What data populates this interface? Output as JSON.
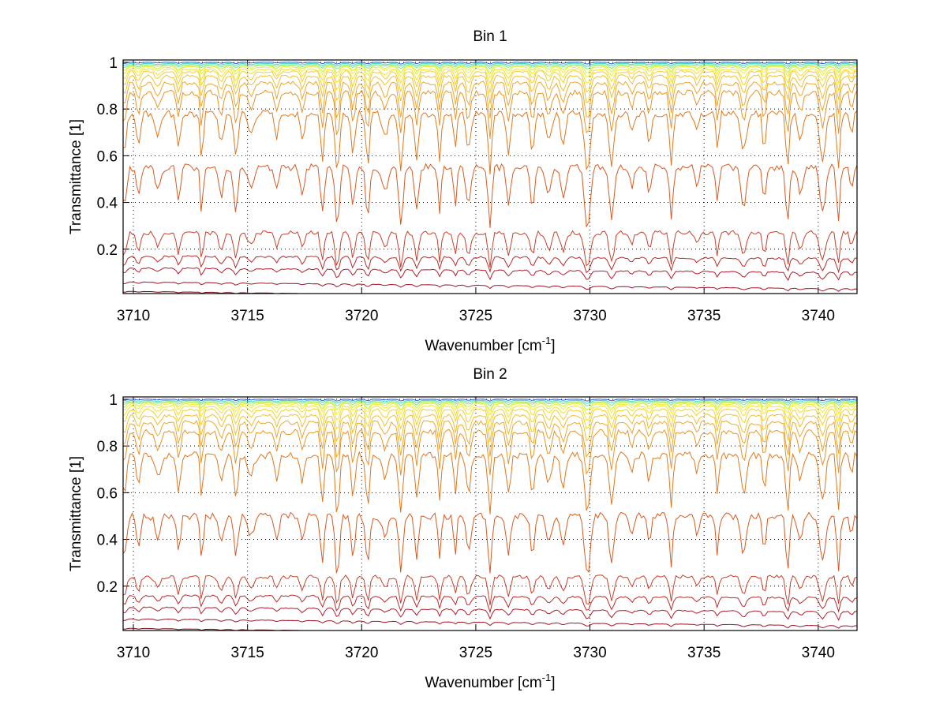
{
  "chart_data": [
    {
      "type": "line",
      "title": "Bin 1",
      "xlabel": "Wavenumber [cm",
      "xlabel_sup": "-1",
      "xlabel_end": "]",
      "ylabel": "Transmittance [1]",
      "xlim": [
        3709.55,
        3741.7
      ],
      "ylim": [
        0.01,
        1.01
      ],
      "xticks": [
        3710,
        3715,
        3720,
        3725,
        3730,
        3735,
        3740
      ],
      "xtick_labels": [
        "3710",
        "3715",
        "3720",
        "3725",
        "3730",
        "3735",
        "3740"
      ],
      "yticks": [
        0.2,
        0.4,
        0.6,
        0.8,
        1
      ],
      "ytick_labels": [
        "0.2",
        "0.4",
        "0.6",
        "0.8",
        "1"
      ],
      "grid": true,
      "series_baselines": [
        0.02,
        0.06,
        0.12,
        0.17,
        0.27,
        0.55,
        0.78,
        0.87,
        0.91,
        0.94,
        0.96,
        0.97,
        0.98,
        0.985,
        0.99,
        0.995,
        1.0
      ],
      "series_depths": [
        0.005,
        0.01,
        0.03,
        0.05,
        0.12,
        0.2,
        0.2,
        0.15,
        0.12,
        0.09,
        0.07,
        0.05,
        0.035,
        0.025,
        0.015,
        0.01,
        0.006
      ],
      "series_colors": [
        "#7a0a14",
        "#a01428",
        "#b01e2c",
        "#b82a2a",
        "#c8402a",
        "#d85a20",
        "#e07820",
        "#e89428",
        "#eca830",
        "#f0c030",
        "#f2d030",
        "#f4e030",
        "#f0ec30",
        "#c8f040",
        "#80e880",
        "#40d8c8",
        "#3060d0"
      ]
    },
    {
      "type": "line",
      "title": "Bin 2",
      "xlabel": "Wavenumber [cm",
      "xlabel_sup": "-1",
      "xlabel_end": "]",
      "ylabel": "Transmittance [1]",
      "xlim": [
        3709.55,
        3741.7
      ],
      "ylim": [
        0.01,
        1.01
      ],
      "xticks": [
        3710,
        3715,
        3720,
        3725,
        3730,
        3735,
        3740
      ],
      "xtick_labels": [
        "3710",
        "3715",
        "3720",
        "3725",
        "3730",
        "3735",
        "3740"
      ],
      "yticks": [
        0.2,
        0.4,
        0.6,
        0.8,
        1
      ],
      "ytick_labels": [
        "0.2",
        "0.4",
        "0.6",
        "0.8",
        "1"
      ],
      "grid": true,
      "series_baselines": [
        0.02,
        0.06,
        0.11,
        0.16,
        0.24,
        0.5,
        0.76,
        0.86,
        0.9,
        0.93,
        0.955,
        0.97,
        0.98,
        0.985,
        0.99,
        0.995,
        1.0
      ],
      "series_depths": [
        0.005,
        0.01,
        0.03,
        0.05,
        0.1,
        0.2,
        0.2,
        0.15,
        0.12,
        0.09,
        0.07,
        0.05,
        0.035,
        0.025,
        0.015,
        0.01,
        0.006
      ],
      "series_colors": [
        "#7a0a14",
        "#a01428",
        "#b01e2c",
        "#b82a2a",
        "#c8402a",
        "#d85a20",
        "#e07820",
        "#e89428",
        "#eca830",
        "#f0c030",
        "#f2d030",
        "#f4e030",
        "#f0ec30",
        "#c8f040",
        "#80e880",
        "#40d8c8",
        "#3060d0"
      ]
    }
  ]
}
